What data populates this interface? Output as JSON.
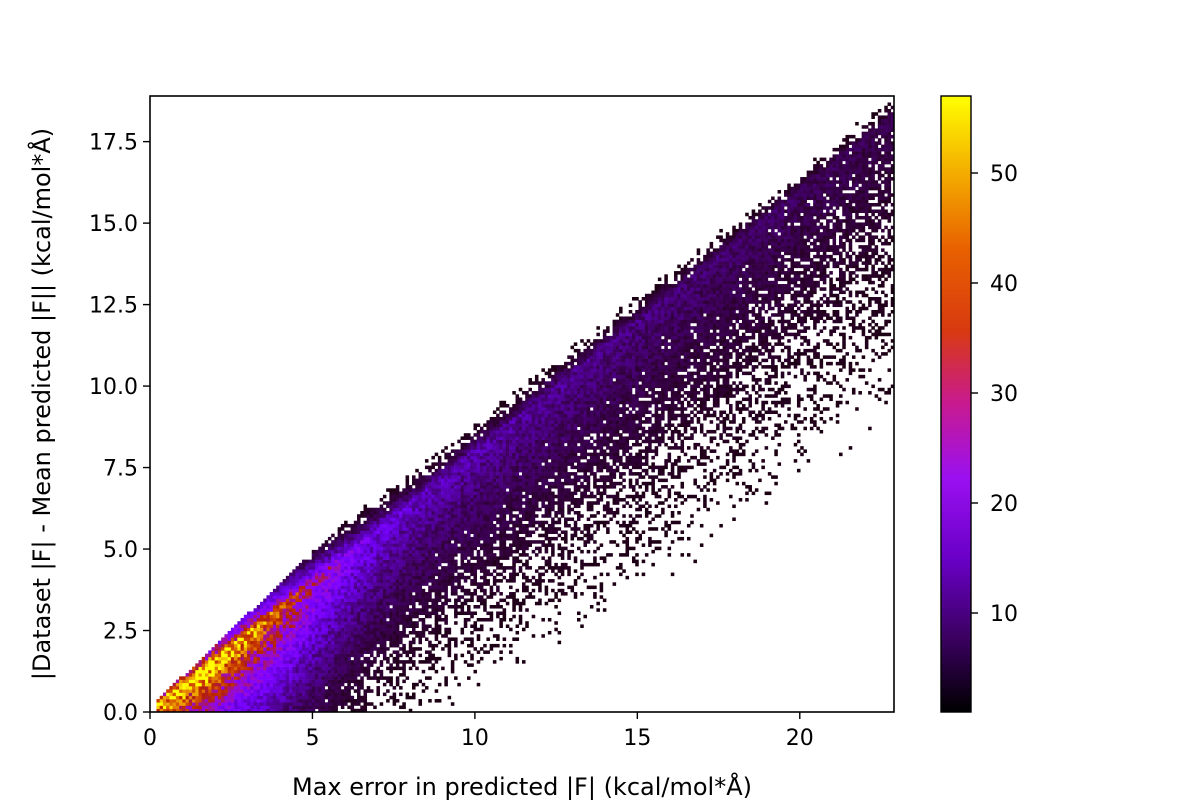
{
  "chart_data": {
    "type": "heatmap",
    "title": "",
    "xlabel": "Max error in predicted |F| (kcal/mol*Å)",
    "ylabel": "|Dataset |F| - Mean predicted |F|| (kcal/mol*Å)",
    "xlim": [
      0,
      22.9
    ],
    "ylim": [
      0,
      18.9
    ],
    "x_ticks": [
      0,
      5,
      10,
      15,
      20
    ],
    "x_tick_labels": [
      "0",
      "5",
      "10",
      "15",
      "20"
    ],
    "y_ticks": [
      0.0,
      2.5,
      5.0,
      7.5,
      10.0,
      12.5,
      15.0,
      17.5
    ],
    "y_tick_labels": [
      "0.0",
      "2.5",
      "5.0",
      "7.5",
      "10.0",
      "12.5",
      "15.0",
      "17.5"
    ],
    "colormap": "gnuplot",
    "colorbar": {
      "range": [
        1,
        57
      ],
      "ticks": [
        10,
        20,
        30,
        40,
        50
      ],
      "tick_labels": [
        "10",
        "20",
        "30",
        "40",
        "50"
      ]
    },
    "density_model": {
      "description_of_counts": "2D histogram counts; peak density along y ≈ 0.8x with counts up to ~57 near x≈1.5, y≈0.8; counts decay with distance from the ridge; no points above y ≈ 0.95x.",
      "bins_x": 230,
      "bins_y": 190,
      "peak_count": 57,
      "ridge_slope": 0.8,
      "upper_boundary_slope": 0.95
    },
    "grid": false,
    "legend": "none"
  }
}
